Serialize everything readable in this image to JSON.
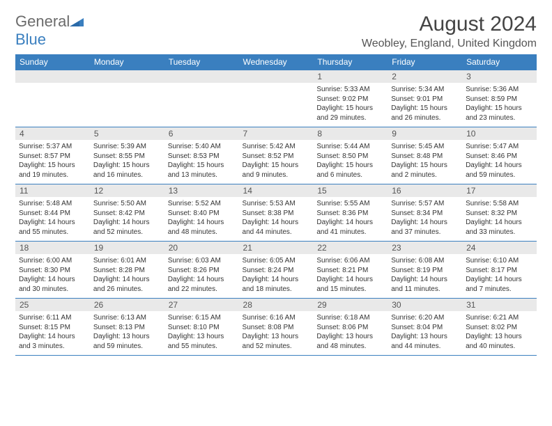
{
  "logo": {
    "text1": "General",
    "text2": "Blue"
  },
  "title": "August 2024",
  "location": "Weobley, England, United Kingdom",
  "colors": {
    "header_bg": "#3a7fbf",
    "header_text": "#ffffff",
    "daynum_bg": "#e9e9e9",
    "border": "#3a7fbf",
    "logo_gray": "#6b6b6b",
    "logo_blue": "#3a7fbf"
  },
  "daysOfWeek": [
    "Sunday",
    "Monday",
    "Tuesday",
    "Wednesday",
    "Thursday",
    "Friday",
    "Saturday"
  ],
  "weeks": [
    [
      {
        "n": "",
        "lines": []
      },
      {
        "n": "",
        "lines": []
      },
      {
        "n": "",
        "lines": []
      },
      {
        "n": "",
        "lines": []
      },
      {
        "n": "1",
        "lines": [
          "Sunrise: 5:33 AM",
          "Sunset: 9:02 PM",
          "Daylight: 15 hours and 29 minutes."
        ]
      },
      {
        "n": "2",
        "lines": [
          "Sunrise: 5:34 AM",
          "Sunset: 9:01 PM",
          "Daylight: 15 hours and 26 minutes."
        ]
      },
      {
        "n": "3",
        "lines": [
          "Sunrise: 5:36 AM",
          "Sunset: 8:59 PM",
          "Daylight: 15 hours and 23 minutes."
        ]
      }
    ],
    [
      {
        "n": "4",
        "lines": [
          "Sunrise: 5:37 AM",
          "Sunset: 8:57 PM",
          "Daylight: 15 hours and 19 minutes."
        ]
      },
      {
        "n": "5",
        "lines": [
          "Sunrise: 5:39 AM",
          "Sunset: 8:55 PM",
          "Daylight: 15 hours and 16 minutes."
        ]
      },
      {
        "n": "6",
        "lines": [
          "Sunrise: 5:40 AM",
          "Sunset: 8:53 PM",
          "Daylight: 15 hours and 13 minutes."
        ]
      },
      {
        "n": "7",
        "lines": [
          "Sunrise: 5:42 AM",
          "Sunset: 8:52 PM",
          "Daylight: 15 hours and 9 minutes."
        ]
      },
      {
        "n": "8",
        "lines": [
          "Sunrise: 5:44 AM",
          "Sunset: 8:50 PM",
          "Daylight: 15 hours and 6 minutes."
        ]
      },
      {
        "n": "9",
        "lines": [
          "Sunrise: 5:45 AM",
          "Sunset: 8:48 PM",
          "Daylight: 15 hours and 2 minutes."
        ]
      },
      {
        "n": "10",
        "lines": [
          "Sunrise: 5:47 AM",
          "Sunset: 8:46 PM",
          "Daylight: 14 hours and 59 minutes."
        ]
      }
    ],
    [
      {
        "n": "11",
        "lines": [
          "Sunrise: 5:48 AM",
          "Sunset: 8:44 PM",
          "Daylight: 14 hours and 55 minutes."
        ]
      },
      {
        "n": "12",
        "lines": [
          "Sunrise: 5:50 AM",
          "Sunset: 8:42 PM",
          "Daylight: 14 hours and 52 minutes."
        ]
      },
      {
        "n": "13",
        "lines": [
          "Sunrise: 5:52 AM",
          "Sunset: 8:40 PM",
          "Daylight: 14 hours and 48 minutes."
        ]
      },
      {
        "n": "14",
        "lines": [
          "Sunrise: 5:53 AM",
          "Sunset: 8:38 PM",
          "Daylight: 14 hours and 44 minutes."
        ]
      },
      {
        "n": "15",
        "lines": [
          "Sunrise: 5:55 AM",
          "Sunset: 8:36 PM",
          "Daylight: 14 hours and 41 minutes."
        ]
      },
      {
        "n": "16",
        "lines": [
          "Sunrise: 5:57 AM",
          "Sunset: 8:34 PM",
          "Daylight: 14 hours and 37 minutes."
        ]
      },
      {
        "n": "17",
        "lines": [
          "Sunrise: 5:58 AM",
          "Sunset: 8:32 PM",
          "Daylight: 14 hours and 33 minutes."
        ]
      }
    ],
    [
      {
        "n": "18",
        "lines": [
          "Sunrise: 6:00 AM",
          "Sunset: 8:30 PM",
          "Daylight: 14 hours and 30 minutes."
        ]
      },
      {
        "n": "19",
        "lines": [
          "Sunrise: 6:01 AM",
          "Sunset: 8:28 PM",
          "Daylight: 14 hours and 26 minutes."
        ]
      },
      {
        "n": "20",
        "lines": [
          "Sunrise: 6:03 AM",
          "Sunset: 8:26 PM",
          "Daylight: 14 hours and 22 minutes."
        ]
      },
      {
        "n": "21",
        "lines": [
          "Sunrise: 6:05 AM",
          "Sunset: 8:24 PM",
          "Daylight: 14 hours and 18 minutes."
        ]
      },
      {
        "n": "22",
        "lines": [
          "Sunrise: 6:06 AM",
          "Sunset: 8:21 PM",
          "Daylight: 14 hours and 15 minutes."
        ]
      },
      {
        "n": "23",
        "lines": [
          "Sunrise: 6:08 AM",
          "Sunset: 8:19 PM",
          "Daylight: 14 hours and 11 minutes."
        ]
      },
      {
        "n": "24",
        "lines": [
          "Sunrise: 6:10 AM",
          "Sunset: 8:17 PM",
          "Daylight: 14 hours and 7 minutes."
        ]
      }
    ],
    [
      {
        "n": "25",
        "lines": [
          "Sunrise: 6:11 AM",
          "Sunset: 8:15 PM",
          "Daylight: 14 hours and 3 minutes."
        ]
      },
      {
        "n": "26",
        "lines": [
          "Sunrise: 6:13 AM",
          "Sunset: 8:13 PM",
          "Daylight: 13 hours and 59 minutes."
        ]
      },
      {
        "n": "27",
        "lines": [
          "Sunrise: 6:15 AM",
          "Sunset: 8:10 PM",
          "Daylight: 13 hours and 55 minutes."
        ]
      },
      {
        "n": "28",
        "lines": [
          "Sunrise: 6:16 AM",
          "Sunset: 8:08 PM",
          "Daylight: 13 hours and 52 minutes."
        ]
      },
      {
        "n": "29",
        "lines": [
          "Sunrise: 6:18 AM",
          "Sunset: 8:06 PM",
          "Daylight: 13 hours and 48 minutes."
        ]
      },
      {
        "n": "30",
        "lines": [
          "Sunrise: 6:20 AM",
          "Sunset: 8:04 PM",
          "Daylight: 13 hours and 44 minutes."
        ]
      },
      {
        "n": "31",
        "lines": [
          "Sunrise: 6:21 AM",
          "Sunset: 8:02 PM",
          "Daylight: 13 hours and 40 minutes."
        ]
      }
    ]
  ]
}
